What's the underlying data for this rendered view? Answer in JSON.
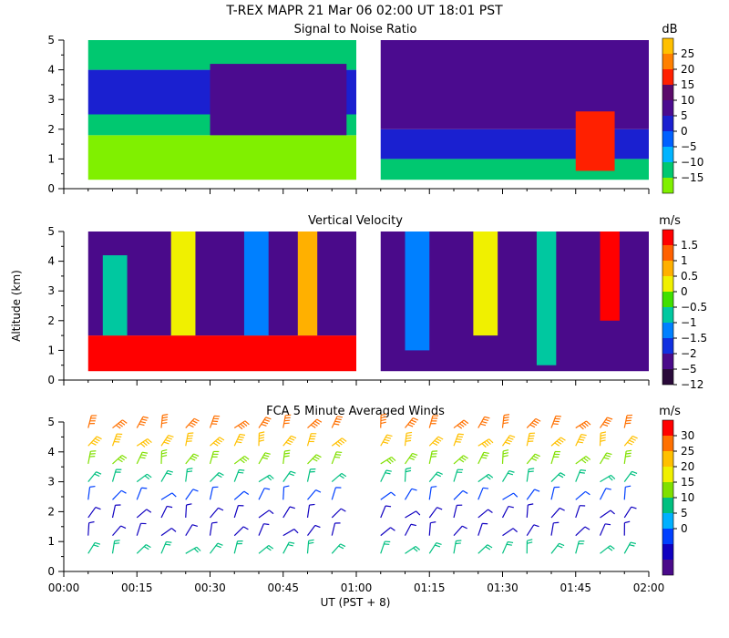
{
  "header": {
    "main_title": "T-REX   MAPR 21 Mar 06   02:00 UT   18:01   PST"
  },
  "chart_data": [
    {
      "id": "snr",
      "type": "heatmap",
      "title": "Signal to Noise Ratio",
      "ylabel": "",
      "ylim": [
        0,
        5
      ],
      "yticks": [
        0,
        1,
        2,
        3,
        4,
        5
      ],
      "xlim_minutes": [
        0,
        120
      ],
      "gap_minutes": [
        60,
        65
      ],
      "colorbar": {
        "unit": "dB",
        "labels": [
          "25",
          "20",
          "15",
          "10",
          "5",
          "0",
          "−5",
          "−10",
          "−15"
        ],
        "colors": [
          "#ffc000",
          "#ff8000",
          "#ff2000",
          "#5a0a6a",
          "#4b0b8f",
          "#1a20d0",
          "#0060ff",
          "#00b4ff",
          "#00c870",
          "#80f000"
        ]
      },
      "regions": [
        {
          "x": [
            5,
            60
          ],
          "y": [
            0.3,
            1.8
          ],
          "color": "#80f000"
        },
        {
          "x": [
            5,
            60
          ],
          "y": [
            1.8,
            2.5
          ],
          "color": "#00c870"
        },
        {
          "x": [
            5,
            60
          ],
          "y": [
            2.5,
            4.0
          ],
          "color": "#1a20d0"
        },
        {
          "x": [
            5,
            60
          ],
          "y": [
            4.0,
            5.0
          ],
          "color": "#00c870"
        },
        {
          "x": [
            30,
            58
          ],
          "y": [
            1.8,
            4.2
          ],
          "color": "#4b0b8f"
        },
        {
          "x": [
            65,
            120
          ],
          "y": [
            0.3,
            1.0
          ],
          "color": "#00c870"
        },
        {
          "x": [
            65,
            120
          ],
          "y": [
            1.0,
            2.0
          ],
          "color": "#1a20d0"
        },
        {
          "x": [
            65,
            120
          ],
          "y": [
            2.0,
            5.0
          ],
          "color": "#4b0b8f"
        },
        {
          "x": [
            105,
            113
          ],
          "y": [
            0.6,
            2.6
          ],
          "color": "#ff2000"
        }
      ]
    },
    {
      "id": "vv",
      "type": "heatmap",
      "title": "Vertical Velocity",
      "ylabel": "Altitude (km)",
      "ylim": [
        0,
        5
      ],
      "yticks": [
        0,
        1,
        2,
        3,
        4,
        5
      ],
      "xlim_minutes": [
        0,
        120
      ],
      "gap_minutes": [
        60,
        65
      ],
      "colorbar": {
        "unit": "m/s",
        "labels": [
          "1.5",
          "1",
          "0.5",
          "0",
          "−0.5",
          "−1",
          "−1.5",
          "−2",
          "−5",
          "−12"
        ],
        "colors": [
          "#ff0000",
          "#ff6000",
          "#ffb000",
          "#f0f000",
          "#40e000",
          "#00c8a0",
          "#0080ff",
          "#1030e0",
          "#4a0a8a",
          "#2a0a3a"
        ]
      },
      "regions": [
        {
          "x": [
            5,
            60
          ],
          "y": [
            0.3,
            1.5
          ],
          "color": "#ff0000"
        },
        {
          "x": [
            5,
            60
          ],
          "y": [
            1.5,
            5.0
          ],
          "color": "#4a0a8a"
        },
        {
          "x": [
            8,
            13
          ],
          "y": [
            1.5,
            4.2
          ],
          "color": "#00c8a0"
        },
        {
          "x": [
            22,
            27
          ],
          "y": [
            1.5,
            5.0
          ],
          "color": "#f0f000"
        },
        {
          "x": [
            37,
            42
          ],
          "y": [
            1.5,
            5.0
          ],
          "color": "#0080ff"
        },
        {
          "x": [
            48,
            52
          ],
          "y": [
            1.5,
            5.0
          ],
          "color": "#ffb000"
        },
        {
          "x": [
            65,
            120
          ],
          "y": [
            0.3,
            5.0
          ],
          "color": "#4a0a8a"
        },
        {
          "x": [
            70,
            75
          ],
          "y": [
            1.0,
            5.0
          ],
          "color": "#0080ff"
        },
        {
          "x": [
            84,
            89
          ],
          "y": [
            1.5,
            5.0
          ],
          "color": "#f0f000"
        },
        {
          "x": [
            97,
            101
          ],
          "y": [
            0.5,
            5.0
          ],
          "color": "#00c8a0"
        },
        {
          "x": [
            110,
            114
          ],
          "y": [
            2.0,
            5.0
          ],
          "color": "#ff0000"
        }
      ]
    },
    {
      "id": "winds",
      "type": "scatter",
      "title": "FCA 5 Minute Averaged Winds",
      "ylabel": "",
      "ylim": [
        0,
        5
      ],
      "yticks": [
        0,
        1,
        2,
        3,
        4,
        5
      ],
      "xlim_minutes": [
        0,
        120
      ],
      "colorbar": {
        "unit": "m/s",
        "labels": [
          "30",
          "25",
          "20",
          "15",
          "10",
          "5",
          "0"
        ],
        "colors": [
          "#ff0000",
          "#ff7000",
          "#ffc000",
          "#f0f000",
          "#80e000",
          "#00c080",
          "#00b0ff",
          "#0040ff",
          "#1000c0",
          "#4a0a8a"
        ]
      },
      "xlabel": "UT  (PST + 8)",
      "xticks": [
        "00:00",
        "00:15",
        "00:30",
        "00:45",
        "01:00",
        "01:15",
        "01:30",
        "01:45",
        "02:00"
      ],
      "barb_times_minutes": [
        5,
        10,
        15,
        20,
        25,
        30,
        35,
        40,
        45,
        50,
        55,
        65,
        70,
        75,
        80,
        85,
        90,
        95,
        100,
        105,
        110,
        115
      ],
      "barb_altitudes_km": [
        0.6,
        1.2,
        1.8,
        2.4,
        3.0,
        3.6,
        4.2,
        4.8
      ],
      "speed_bands": [
        {
          "altitude_km": 4.8,
          "speed": 27
        },
        {
          "altitude_km": 4.2,
          "speed": 22
        },
        {
          "altitude_km": 3.6,
          "speed": 17
        },
        {
          "altitude_km": 3.0,
          "speed": 12
        },
        {
          "altitude_km": 2.4,
          "speed": 8
        },
        {
          "altitude_km": 1.8,
          "speed": 5
        },
        {
          "altitude_km": 1.2,
          "speed": 3
        },
        {
          "altitude_km": 0.6,
          "speed": 12
        }
      ]
    }
  ]
}
